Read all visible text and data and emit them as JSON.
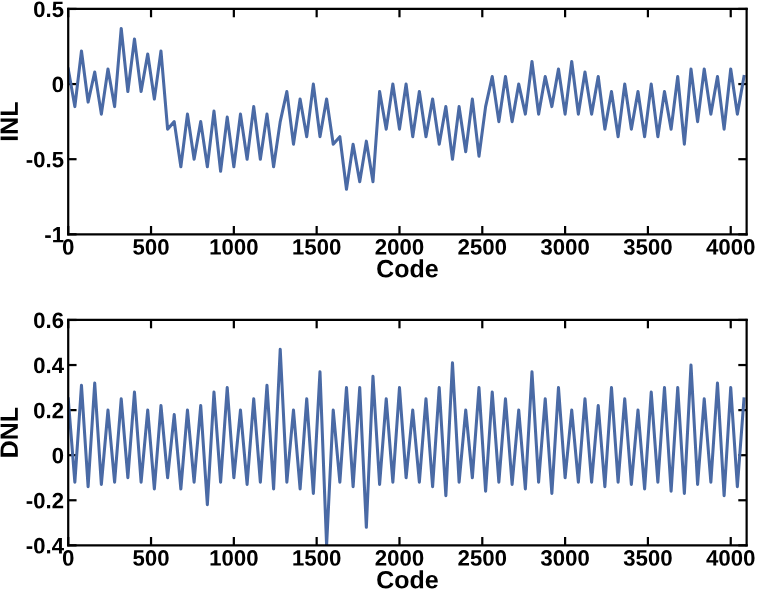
{
  "chart_data": [
    {
      "type": "line",
      "xlabel": "Code",
      "ylabel": "INL",
      "xlim": [
        0,
        4096
      ],
      "ylim": [
        -1,
        0.5
      ],
      "xticks": [
        0,
        500,
        1000,
        1500,
        2000,
        2500,
        3000,
        3500,
        4000
      ],
      "yticks": [
        -1,
        -0.5,
        0,
        0.5
      ],
      "grid": false,
      "x": [
        0,
        40,
        80,
        120,
        160,
        200,
        240,
        280,
        320,
        360,
        400,
        440,
        480,
        520,
        560,
        600,
        640,
        680,
        720,
        760,
        800,
        840,
        880,
        920,
        960,
        1000,
        1040,
        1080,
        1120,
        1160,
        1200,
        1240,
        1280,
        1320,
        1360,
        1400,
        1440,
        1480,
        1520,
        1560,
        1600,
        1640,
        1680,
        1720,
        1760,
        1800,
        1840,
        1880,
        1920,
        1960,
        2000,
        2040,
        2080,
        2120,
        2160,
        2200,
        2240,
        2280,
        2320,
        2360,
        2400,
        2440,
        2480,
        2520,
        2560,
        2600,
        2640,
        2680,
        2720,
        2760,
        2800,
        2840,
        2880,
        2920,
        2960,
        3000,
        3040,
        3080,
        3120,
        3160,
        3200,
        3240,
        3280,
        3320,
        3360,
        3400,
        3440,
        3480,
        3520,
        3560,
        3600,
        3640,
        3680,
        3720,
        3760,
        3800,
        3840,
        3880,
        3920,
        3960,
        4000,
        4040,
        4080
      ],
      "series": [
        {
          "color": "#4a6aa5",
          "values": [
            0.1,
            -0.15,
            0.22,
            -0.12,
            0.08,
            -0.2,
            0.1,
            -0.15,
            0.37,
            -0.05,
            0.3,
            -0.05,
            0.2,
            -0.1,
            0.22,
            -0.3,
            -0.25,
            -0.55,
            -0.2,
            -0.5,
            -0.25,
            -0.55,
            -0.18,
            -0.58,
            -0.22,
            -0.55,
            -0.2,
            -0.5,
            -0.15,
            -0.5,
            -0.2,
            -0.55,
            -0.25,
            -0.05,
            -0.4,
            -0.1,
            -0.35,
            0.0,
            -0.35,
            -0.1,
            -0.4,
            -0.35,
            -0.7,
            -0.4,
            -0.65,
            -0.38,
            -0.65,
            -0.05,
            -0.3,
            0.0,
            -0.3,
            0.0,
            -0.35,
            -0.05,
            -0.35,
            -0.1,
            -0.4,
            -0.15,
            -0.5,
            -0.15,
            -0.45,
            -0.1,
            -0.48,
            -0.15,
            0.05,
            -0.25,
            0.05,
            -0.25,
            0.0,
            -0.2,
            0.15,
            -0.2,
            0.05,
            -0.15,
            0.1,
            -0.2,
            0.15,
            -0.2,
            0.08,
            -0.2,
            0.05,
            -0.3,
            -0.05,
            -0.35,
            0.0,
            -0.3,
            -0.05,
            -0.35,
            0.0,
            -0.35,
            -0.05,
            -0.3,
            0.05,
            -0.4,
            0.1,
            -0.25,
            0.1,
            -0.2,
            0.05,
            -0.3,
            0.1,
            -0.2,
            0.05
          ]
        }
      ]
    },
    {
      "type": "line",
      "xlabel": "Code",
      "ylabel": "DNL",
      "xlim": [
        0,
        4096
      ],
      "ylim": [
        -0.4,
        0.6
      ],
      "xticks": [
        0,
        500,
        1000,
        1500,
        2000,
        2500,
        3000,
        3500,
        4000
      ],
      "yticks": [
        -0.4,
        -0.2,
        0,
        0.2,
        0.4,
        0.6
      ],
      "grid": false,
      "x": [
        0,
        40,
        80,
        120,
        160,
        200,
        240,
        280,
        320,
        360,
        400,
        440,
        480,
        520,
        560,
        600,
        640,
        680,
        720,
        760,
        800,
        840,
        880,
        920,
        960,
        1000,
        1040,
        1080,
        1120,
        1160,
        1200,
        1240,
        1280,
        1320,
        1360,
        1400,
        1440,
        1480,
        1520,
        1560,
        1600,
        1640,
        1680,
        1720,
        1760,
        1800,
        1840,
        1880,
        1920,
        1960,
        2000,
        2040,
        2080,
        2120,
        2160,
        2200,
        2240,
        2280,
        2320,
        2360,
        2400,
        2440,
        2480,
        2520,
        2560,
        2600,
        2640,
        2680,
        2720,
        2760,
        2800,
        2840,
        2880,
        2920,
        2960,
        3000,
        3040,
        3080,
        3120,
        3160,
        3200,
        3240,
        3280,
        3320,
        3360,
        3400,
        3440,
        3480,
        3520,
        3560,
        3600,
        3640,
        3680,
        3720,
        3760,
        3800,
        3840,
        3880,
        3920,
        3960,
        4000,
        4040,
        4080
      ],
      "series": [
        {
          "color": "#4a6aa5",
          "values": [
            0.25,
            -0.12,
            0.31,
            -0.14,
            0.32,
            -0.13,
            0.2,
            -0.12,
            0.25,
            -0.1,
            0.28,
            -0.12,
            0.2,
            -0.15,
            0.22,
            -0.1,
            0.18,
            -0.15,
            0.2,
            -0.12,
            0.22,
            -0.22,
            0.28,
            -0.12,
            0.3,
            -0.1,
            0.2,
            -0.13,
            0.25,
            -0.12,
            0.31,
            -0.15,
            0.47,
            -0.12,
            0.2,
            -0.15,
            0.25,
            -0.17,
            0.37,
            -0.4,
            0.2,
            -0.12,
            0.3,
            -0.14,
            0.3,
            -0.32,
            0.35,
            -0.13,
            0.25,
            -0.12,
            0.3,
            -0.1,
            0.2,
            -0.12,
            0.25,
            -0.14,
            0.3,
            -0.18,
            0.41,
            -0.12,
            0.2,
            -0.1,
            0.3,
            -0.16,
            0.28,
            -0.12,
            0.25,
            -0.13,
            0.2,
            -0.15,
            0.37,
            -0.12,
            0.25,
            -0.17,
            0.3,
            -0.1,
            0.2,
            -0.12,
            0.25,
            -0.12,
            0.22,
            -0.14,
            0.3,
            -0.12,
            0.25,
            -0.13,
            0.2,
            -0.15,
            0.28,
            -0.12,
            0.3,
            -0.16,
            0.3,
            -0.17,
            0.4,
            -0.13,
            0.25,
            -0.12,
            0.32,
            -0.18,
            0.3,
            -0.14,
            0.25
          ]
        }
      ]
    }
  ]
}
